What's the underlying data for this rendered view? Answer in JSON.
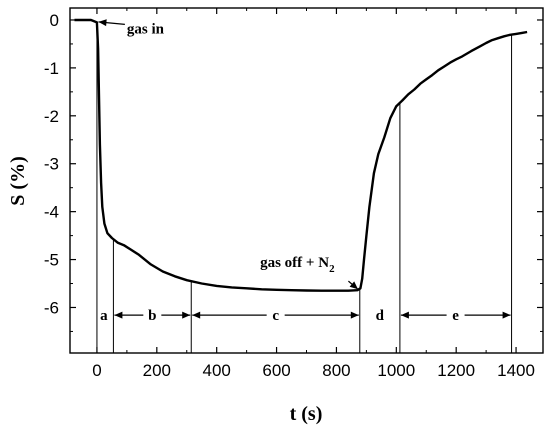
{
  "chart_data": {
    "type": "line",
    "xlabel": "t (s)",
    "ylabel": "S (%)",
    "xlim": [
      -90,
      1490
    ],
    "ylim": [
      -6.95,
      0.25
    ],
    "x_ticks": [
      0,
      200,
      400,
      600,
      800,
      1000,
      1200,
      1400
    ],
    "y_ticks": [
      0,
      -1,
      -2,
      -3,
      -4,
      -5,
      -6
    ],
    "x_tick_labels": [
      "0",
      "200",
      "400",
      "600",
      "800",
      "1000",
      "1200",
      "1400"
    ],
    "y_tick_labels": [
      "0",
      "-1",
      "-2",
      "-3",
      "-4",
      "-5",
      "-6"
    ],
    "grid": false,
    "series": [
      {
        "x": [
          -75,
          -20,
          0,
          4,
          7,
          10,
          14,
          18,
          25,
          35,
          50,
          70,
          90,
          110,
          140,
          180,
          220,
          260,
          300,
          350,
          400,
          450,
          500,
          550,
          600,
          650,
          700,
          750,
          800,
          840,
          870,
          880,
          886,
          892,
          900,
          910,
          925,
          940,
          960,
          980,
          1000,
          1020,
          1040,
          1060,
          1080,
          1100,
          1120,
          1140,
          1160,
          1180,
          1200,
          1220,
          1250,
          1280,
          1300,
          1320,
          1340,
          1360,
          1380,
          1400,
          1420,
          1437
        ],
        "y": [
          0,
          0,
          -0.05,
          -0.6,
          -1.6,
          -2.6,
          -3.4,
          -3.9,
          -4.25,
          -4.45,
          -4.55,
          -4.65,
          -4.7,
          -4.78,
          -4.9,
          -5.1,
          -5.25,
          -5.35,
          -5.43,
          -5.5,
          -5.55,
          -5.58,
          -5.6,
          -5.62,
          -5.63,
          -5.64,
          -5.645,
          -5.65,
          -5.65,
          -5.65,
          -5.64,
          -5.6,
          -5.4,
          -5.0,
          -4.5,
          -3.9,
          -3.2,
          -2.8,
          -2.45,
          -2.05,
          -1.8,
          -1.68,
          -1.55,
          -1.45,
          -1.33,
          -1.24,
          -1.15,
          -1.05,
          -0.97,
          -0.89,
          -0.82,
          -0.76,
          -0.65,
          -0.55,
          -0.48,
          -0.42,
          -0.38,
          -0.34,
          -0.31,
          -0.29,
          -0.27,
          -0.25
        ]
      }
    ],
    "annotations": [
      {
        "text": "gas in",
        "x": 100,
        "y": -0.28,
        "arrow_to": [
          5,
          -0.04
        ]
      },
      {
        "text": "gas off + N",
        "subscript": "2",
        "x": 545,
        "y": -5.15,
        "arrow_to": [
          872,
          -5.62
        ]
      }
    ],
    "segment_lines_x": [
      0,
      55,
      315,
      878,
      1012,
      1385
    ],
    "segments": [
      {
        "label": "a",
        "x": 23,
        "y": -6.16,
        "arrows": false,
        "start": 0,
        "end": 55
      },
      {
        "label": "b",
        "x": 185,
        "y": -6.16,
        "arrows": true,
        "start": 55,
        "end": 315
      },
      {
        "label": "c",
        "x": 597,
        "y": -6.16,
        "arrows": true,
        "start": 315,
        "end": 878
      },
      {
        "label": "d",
        "x": 945,
        "y": -6.16,
        "arrows": false,
        "start": 878,
        "end": 1012
      },
      {
        "label": "e",
        "x": 1198,
        "y": -6.16,
        "arrows": true,
        "start": 1012,
        "end": 1385
      }
    ]
  }
}
